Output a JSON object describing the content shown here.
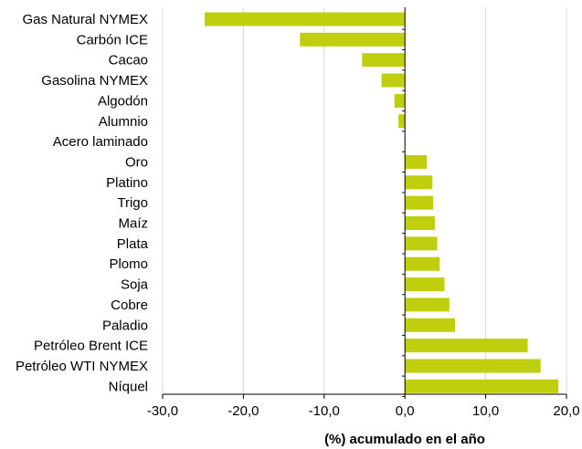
{
  "chart_data": {
    "type": "bar",
    "orientation": "horizontal",
    "title": "",
    "xlabel": "(%) acumulado en el año",
    "ylabel": "",
    "xlim": [
      -30,
      20
    ],
    "x_ticks": [
      -30,
      -20,
      -10,
      0,
      10,
      20
    ],
    "x_tick_labels": [
      "-30,0",
      "-20,0",
      "-10,0",
      "0,0",
      "10,0",
      "20,0"
    ],
    "grid": "vertical",
    "bar_color": "#bfce0d",
    "categories": [
      "Gas Natural NYMEX",
      "Carbón ICE",
      "Cacao",
      "Gasolina NYMEX",
      "Algodón",
      "Alumnio",
      "Acero laminado",
      "Oro",
      "Platino",
      "Trigo",
      "Maíz",
      "Plata",
      "Plomo",
      "Soja",
      "Cobre",
      "Paladio",
      "Petróleo Brent ICE",
      "Petróleo WTI NYMEX",
      "Níquel"
    ],
    "values": [
      -24.8,
      -13.0,
      -5.3,
      -2.9,
      -1.3,
      -0.8,
      0.0,
      2.7,
      3.4,
      3.5,
      3.7,
      4.0,
      4.3,
      4.9,
      5.5,
      6.2,
      15.2,
      16.8,
      19.0
    ]
  }
}
